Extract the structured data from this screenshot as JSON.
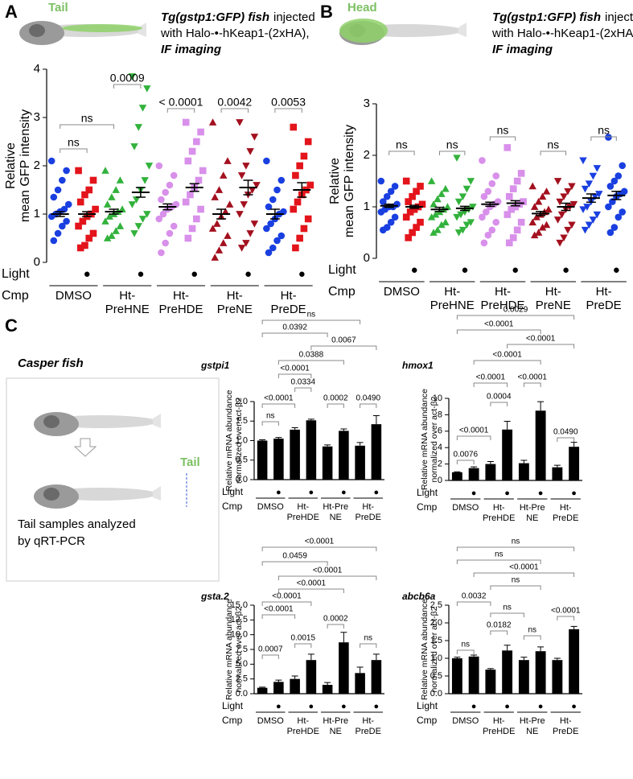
{
  "figure": {
    "panel_labels": [
      "A",
      "B",
      "C"
    ],
    "fish_a": "Tail",
    "fish_b": "Head",
    "caption": {
      "emphasis": "Tg(gstp1:GFP) fish",
      "rest": "injected",
      "line2": "with Halo-•-hKeap1-(2xHA),",
      "line3": "IF imaging"
    },
    "casper": {
      "title": "Casper fish",
      "tail": "Tail",
      "note": [
        "Tail samples analyzed",
        "by qRT-PCR"
      ]
    }
  },
  "chart_data": [
    {
      "type": "strip",
      "y_label": [
        "Relative",
        "mean GFP intensity"
      ],
      "ylim": [
        0,
        4
      ],
      "yticks": [
        0,
        1,
        2,
        3,
        4
      ],
      "light_label": "Light",
      "light": [
        null,
        "●",
        null,
        "●",
        null,
        "●",
        null,
        "●",
        null,
        "●"
      ],
      "cmp_label": "Cmp",
      "cmp_groups": [
        [
          "DMSO"
        ],
        [
          "Ht-",
          "PreHNE"
        ],
        [
          "Ht-",
          "PreHDE"
        ],
        [
          "Ht-",
          "PreNE"
        ],
        [
          "Ht-",
          "PreDE"
        ]
      ],
      "brackets": [
        "ns",
        "ns",
        "0.0009",
        "< 0.0001",
        "0.0042",
        "0.0053"
      ],
      "groups": [
        {
          "color": "#1a3fe0",
          "marker": "circle",
          "mean": 1.0,
          "error": 0.05,
          "values": [
            2.1,
            1.9,
            1.7,
            1.5,
            1.35,
            1.2,
            1.1,
            1.05,
            1.0,
            0.95,
            0.85,
            0.75,
            0.6,
            0.45
          ]
        },
        {
          "color": "#e3141b",
          "marker": "square",
          "mean": 1.0,
          "error": 0.05,
          "values": [
            1.9,
            1.7,
            1.5,
            1.4,
            1.25,
            1.1,
            1.0,
            0.95,
            0.85,
            0.75,
            0.6,
            0.5,
            0.35,
            0.3
          ]
        },
        {
          "color": "#32b23c",
          "marker": "triangle",
          "mean": 1.05,
          "error": 0.05,
          "values": [
            1.9,
            1.7,
            1.5,
            1.35,
            1.2,
            1.1,
            1.05,
            1.0,
            0.95,
            0.85,
            0.75,
            0.65,
            0.55,
            0.5
          ]
        },
        {
          "color": "#32b23c",
          "marker": "triangle-down",
          "mean": 1.45,
          "error": 0.1,
          "values": [
            3.85,
            3.6,
            3.2,
            2.8,
            2.4,
            2.0,
            1.7,
            1.5,
            1.3,
            1.2,
            1.0,
            0.9,
            0.75,
            0.6
          ]
        },
        {
          "color": "#d890ea",
          "marker": "circle",
          "mean": 1.15,
          "error": 0.06,
          "values": [
            2.0,
            1.8,
            1.6,
            1.45,
            1.3,
            1.2,
            1.15,
            1.1,
            1.0,
            0.9,
            0.75,
            0.6,
            0.4,
            0.2
          ]
        },
        {
          "color": "#d890ea",
          "marker": "square",
          "mean": 1.55,
          "error": 0.08,
          "values": [
            2.9,
            2.7,
            2.5,
            2.3,
            2.1,
            1.9,
            1.7,
            1.55,
            1.4,
            1.25,
            1.1,
            0.9,
            0.7,
            0.5
          ]
        },
        {
          "color": "#a3101e",
          "marker": "triangle",
          "mean": 1.0,
          "error": 0.1,
          "values": [
            2.9,
            2.1,
            1.8,
            1.5,
            1.35,
            1.2,
            1.05,
            0.95,
            0.8,
            0.7,
            0.55,
            0.4,
            0.25,
            0.1
          ]
        },
        {
          "color": "#a3101e",
          "marker": "triangle-down",
          "mean": 1.55,
          "error": 0.15,
          "values": [
            2.9,
            2.6,
            2.3,
            2.0,
            1.8,
            1.6,
            1.5,
            1.4,
            1.2,
            1.0,
            0.8,
            0.6,
            0.4,
            0.3
          ]
        },
        {
          "color": "#1a3fe0",
          "marker": "circle",
          "mean": 1.0,
          "error": 0.1,
          "values": [
            2.1,
            1.7,
            1.5,
            1.3,
            1.15,
            1.05,
            1.0,
            0.9,
            0.8,
            0.7,
            0.55,
            0.45,
            0.3,
            0.2
          ]
        },
        {
          "color": "#e3141b",
          "marker": "square",
          "mean": 1.5,
          "error": 0.15,
          "values": [
            2.8,
            2.5,
            2.2,
            2.0,
            1.8,
            1.6,
            1.5,
            1.4,
            1.25,
            1.1,
            0.9,
            0.7,
            0.5,
            0.3
          ]
        }
      ]
    },
    {
      "type": "strip",
      "y_label": [
        "Relative",
        "mean GFP intensity"
      ],
      "ylim": [
        0,
        3
      ],
      "yticks": [
        0,
        1,
        2,
        3
      ],
      "light_label": "Light",
      "light": [
        null,
        "●",
        null,
        "●",
        null,
        "●",
        null,
        "●",
        null,
        "●"
      ],
      "cmp_label": "Cmp",
      "cmp_groups": [
        [
          "DMSO"
        ],
        [
          "Ht-",
          "PreHNE"
        ],
        [
          "Ht-",
          "PreHDE"
        ],
        [
          "Ht-",
          "PreNE"
        ],
        [
          "Ht-",
          "PreDE"
        ]
      ],
      "brackets": [
        "ns",
        "ns",
        "ns",
        "ns",
        "ns"
      ],
      "groups": [
        {
          "color": "#1a3fe0",
          "marker": "circle",
          "mean": 1.02,
          "error": 0.03,
          "values": [
            1.5,
            1.4,
            1.3,
            1.2,
            1.1,
            1.05,
            1.0,
            1.0,
            0.95,
            0.9,
            0.8,
            0.7,
            0.6,
            0.55
          ]
        },
        {
          "color": "#e3141b",
          "marker": "square",
          "mean": 1.0,
          "error": 0.03,
          "values": [
            1.5,
            1.4,
            1.3,
            1.2,
            1.1,
            1.05,
            1.0,
            0.95,
            0.9,
            0.8,
            0.7,
            0.6,
            0.5,
            0.4
          ]
        },
        {
          "color": "#32b23c",
          "marker": "triangle",
          "mean": 0.95,
          "error": 0.04,
          "values": [
            1.5,
            1.35,
            1.25,
            1.15,
            1.05,
            1.0,
            0.95,
            0.9,
            0.85,
            0.8,
            0.7,
            0.65,
            0.55,
            0.5
          ]
        },
        {
          "color": "#32b23c",
          "marker": "triangle-down",
          "mean": 0.97,
          "error": 0.04,
          "values": [
            1.95,
            1.5,
            1.35,
            1.2,
            1.1,
            1.0,
            0.95,
            0.9,
            0.85,
            0.8,
            0.7,
            0.65,
            0.55,
            0.5
          ]
        },
        {
          "color": "#d890ea",
          "marker": "circle",
          "mean": 1.05,
          "error": 0.04,
          "values": [
            1.9,
            1.6,
            1.45,
            1.3,
            1.2,
            1.1,
            1.05,
            1.0,
            0.9,
            0.8,
            0.7,
            0.55,
            0.45,
            0.3
          ]
        },
        {
          "color": "#d890ea",
          "marker": "square",
          "mean": 1.07,
          "error": 0.05,
          "values": [
            2.15,
            1.65,
            1.5,
            1.35,
            1.2,
            1.1,
            1.05,
            1.0,
            0.95,
            0.85,
            0.7,
            0.55,
            0.4,
            0.3
          ]
        },
        {
          "color": "#a3101e",
          "marker": "triangle",
          "mean": 0.87,
          "error": 0.04,
          "values": [
            1.4,
            1.3,
            1.2,
            1.1,
            1.0,
            0.95,
            0.9,
            0.85,
            0.8,
            0.7,
            0.65,
            0.6,
            0.5,
            0.45
          ]
        },
        {
          "color": "#a3101e",
          "marker": "triangle-down",
          "mean": 1.0,
          "error": 0.07,
          "values": [
            1.5,
            1.4,
            1.3,
            1.2,
            1.1,
            1.05,
            1.0,
            0.95,
            0.85,
            0.75,
            0.65,
            0.55,
            0.4,
            0.3
          ]
        },
        {
          "color": "#1a3fe0",
          "marker": "triangle-down",
          "mean": 1.17,
          "error": 0.08,
          "values": [
            1.9,
            1.75,
            1.6,
            1.45,
            1.35,
            1.25,
            1.2,
            1.1,
            1.0,
            0.95,
            0.85,
            0.75,
            0.65,
            0.55
          ]
        },
        {
          "color": "#1a3fe0",
          "marker": "circle",
          "mean": 1.22,
          "error": 0.08,
          "values": [
            2.35,
            1.8,
            1.6,
            1.5,
            1.4,
            1.3,
            1.25,
            1.2,
            1.1,
            1.0,
            0.9,
            0.8,
            0.6,
            0.5
          ]
        }
      ]
    },
    {
      "type": "bar",
      "title": "gstpi1",
      "y_label": [
        "Relative mRNA abundance",
        "normalized over act-β2"
      ],
      "color": "#000000",
      "ylim": [
        0,
        2
      ],
      "yticks": [
        {
          "value": 0,
          "label": "0.0"
        },
        0.5,
        {
          "value": 1,
          "label": "1.0"
        },
        1.5,
        {
          "value": 2,
          "label": "2.0"
        }
      ],
      "values": [
        1.0,
        1.05,
        1.28,
        1.52,
        0.85,
        1.25,
        0.87,
        1.42
      ],
      "errors": [
        0.02,
        0.03,
        0.05,
        0.03,
        0.04,
        0.05,
        0.08,
        0.22
      ],
      "light_label": "Light",
      "light": [
        null,
        "●",
        null,
        "●",
        null,
        "●",
        null,
        "●"
      ],
      "cmp_label": "Cmp",
      "cmp_groups": [
        [
          "DMSO"
        ],
        [
          "Ht-",
          "PreHDE"
        ],
        [
          "Ht-Pre",
          "NE"
        ],
        [
          "Ht-",
          "PreDE"
        ]
      ],
      "brackets": [
        "ns",
        "0.0392",
        "0.0067",
        "0.0388",
        "<0.0001",
        "0.0334",
        "<0.0001",
        "0.0002",
        "0.0490",
        "ns"
      ]
    },
    {
      "type": "bar",
      "title": "hmox1",
      "y_label": [
        "Relative mRNA abundance",
        "normalized over act-β2"
      ],
      "color": "#000000",
      "ylim": [
        0,
        10
      ],
      "yticks": [
        0,
        2,
        4,
        6,
        8,
        10
      ],
      "values": [
        1.0,
        1.5,
        2.0,
        6.2,
        2.1,
        8.5,
        1.6,
        4.1
      ],
      "errors": [
        0.05,
        0.15,
        0.3,
        1.0,
        0.35,
        1.1,
        0.25,
        0.55
      ],
      "light_label": "Light",
      "light": [
        null,
        "●",
        null,
        "●",
        null,
        "●",
        null,
        "●"
      ],
      "cmp_label": "Cmp",
      "cmp_groups": [
        [
          "DMSO"
        ],
        [
          "Ht-",
          "PreHDE"
        ],
        [
          "Ht-Pre",
          "NE"
        ],
        [
          "Ht-",
          "PreDE"
        ]
      ],
      "brackets": [
        "0.0029",
        "<0.0001",
        "<0.0001",
        "<0.0001",
        "<0.0001",
        "<0.0001",
        "0.0004",
        "<0.0001",
        "0.0490",
        "0.0076"
      ]
    },
    {
      "type": "bar",
      "title": "gsta.2",
      "y_label": [
        "Relative mRNA abundance",
        "normalized over act-β2"
      ],
      "color": "#000000",
      "ylim": [
        0,
        15
      ],
      "yticks": [
        {
          "value": 0,
          "label": "0.0"
        },
        2.5,
        {
          "value": 5,
          "label": "5.0"
        },
        7.5,
        {
          "value": 10,
          "label": "10.0"
        },
        12.5,
        {
          "value": 15,
          "label": "15.0"
        }
      ],
      "values": [
        1.0,
        2.0,
        2.5,
        5.7,
        1.5,
        8.7,
        3.5,
        5.7
      ],
      "errors": [
        0.1,
        0.3,
        0.5,
        1.0,
        0.4,
        1.7,
        1.0,
        1.0
      ],
      "light_label": "Light",
      "light": [
        null,
        "●",
        null,
        "●",
        null,
        "●",
        null,
        "●"
      ],
      "cmp_label": "Cmp",
      "cmp_groups": [
        [
          "DMSO"
        ],
        [
          "Ht-",
          "PreHDE"
        ],
        [
          "Ht-Pre",
          "NE"
        ],
        [
          "Ht-",
          "PreDE"
        ]
      ],
      "brackets": [
        "<0.0001",
        "0.0459",
        "<0.0001",
        "<0.0001",
        "<0.0001",
        "<0.0001",
        "0.0015",
        "0.0002",
        "0.0007",
        "ns"
      ]
    },
    {
      "type": "bar",
      "title": "abcb6a",
      "y_label": [
        "Relative mRNA abundance",
        "normalized over act-β2"
      ],
      "color": "#000000",
      "ylim": [
        0,
        2.5
      ],
      "yticks": [
        {
          "value": 0,
          "label": "0.0"
        },
        0.5,
        {
          "value": 1,
          "label": "1.0"
        },
        1.5,
        {
          "value": 2,
          "label": "2.0"
        },
        2.5
      ],
      "values": [
        1.0,
        1.05,
        0.68,
        1.22,
        0.95,
        1.2,
        0.95,
        1.82
      ],
      "errors": [
        0.03,
        0.04,
        0.03,
        0.15,
        0.08,
        0.12,
        0.05,
        0.08
      ],
      "light_label": "Light",
      "light": [
        null,
        "●",
        null,
        "●",
        null,
        "●",
        null,
        "●"
      ],
      "cmp_label": "Cmp",
      "cmp_groups": [
        [
          "DMSO"
        ],
        [
          "Ht-",
          "PreHDE"
        ],
        [
          "Ht-Pre",
          "NE"
        ],
        [
          "Ht-",
          "PreDE"
        ]
      ],
      "brackets": [
        "ns",
        "ns",
        "<0.0001",
        "ns",
        "0.0032",
        "ns",
        "0.0182",
        "ns",
        "<0.0001",
        "ns"
      ]
    }
  ]
}
